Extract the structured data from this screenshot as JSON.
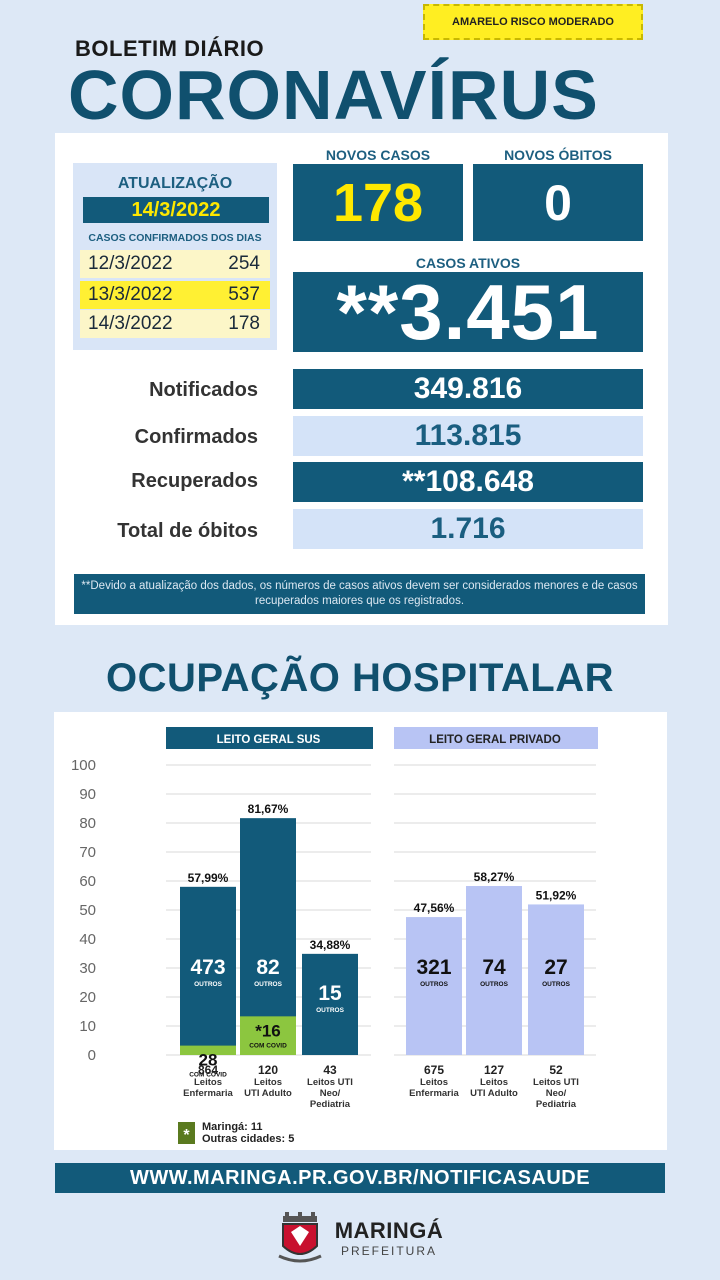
{
  "risk_badge": "AMARELO RISCO MODERADO",
  "header": {
    "subtitle": "BOLETIM DIÁRIO",
    "title": "CORONAVÍRUS"
  },
  "update": {
    "title": "ATUALIZAÇÃO",
    "date": "14/3/2022",
    "label": "CASOS CONFIRMADOS DOS DIAS",
    "days": [
      {
        "date": "12/3/2022",
        "value": "254"
      },
      {
        "date": "13/3/2022",
        "value": "537"
      },
      {
        "date": "14/3/2022",
        "value": "178"
      }
    ]
  },
  "new_cases": {
    "label": "NOVOS CASOS",
    "value": "178"
  },
  "new_deaths": {
    "label": "NOVOS ÓBITOS",
    "value": "0"
  },
  "active": {
    "label": "CASOS ATIVOS",
    "value": "**3.451"
  },
  "stats": [
    {
      "label": "Notificados",
      "value": "349.816"
    },
    {
      "label": "Confirmados",
      "value": "113.815"
    },
    {
      "label": "Recuperados",
      "value": "**108.648"
    },
    {
      "label": "Total de óbitos",
      "value": "1.716"
    }
  ],
  "note": "**Devido a atualização dos dados, os números de casos ativos devem ser considerados menores e de casos recuperados maiores que os registrados.",
  "occupancy_title": "OCUPAÇÃO HOSPITALAR",
  "chart_data": {
    "type": "bar",
    "ylim": [
      0,
      100
    ],
    "yticks": [
      "100",
      "90",
      "80",
      "70",
      "60",
      "50",
      "40",
      "30",
      "20",
      "10",
      "0"
    ],
    "groups": [
      {
        "name": "LEITO GERAL SUS",
        "bars": [
          {
            "pct": 57.99,
            "pct_label": "57,99%",
            "others": "473",
            "others_label": "OUTROS",
            "covid": "28",
            "covid_label": "COM COVID",
            "covid_pct": 3.24,
            "beds": "864",
            "category": "Leitos Enfermaria"
          },
          {
            "pct": 81.67,
            "pct_label": "81,67%",
            "others": "82",
            "others_label": "OUTROS",
            "covid": "*16",
            "covid_label": "COM COVID",
            "covid_pct": 13.33,
            "beds": "120",
            "category": "Leitos UTI Adulto"
          },
          {
            "pct": 34.88,
            "pct_label": "34,88%",
            "others": "15",
            "others_label": "OUTROS",
            "covid": "",
            "covid_label": "",
            "covid_pct": 0,
            "beds": "43",
            "category": "Leitos UTI Neo/ Pediatria"
          }
        ]
      },
      {
        "name": "LEITO GERAL PRIVADO",
        "bars": [
          {
            "pct": 47.56,
            "pct_label": "47,56%",
            "others": "321",
            "others_label": "OUTROS",
            "beds": "675",
            "category": "Leitos Enfermaria"
          },
          {
            "pct": 58.27,
            "pct_label": "58,27%",
            "others": "74",
            "others_label": "OUTROS",
            "beds": "127",
            "category": "Leitos UTI Adulto"
          },
          {
            "pct": 51.92,
            "pct_label": "51,92%",
            "others": "27",
            "others_label": "OUTROS",
            "beds": "52",
            "category": "Leitos UTI Neo/ Pediatria"
          }
        ]
      }
    ],
    "footnote": {
      "mark": "*",
      "line1": "Maringá: 11",
      "line2": "Outras cidades: 5"
    },
    "colors": {
      "sus": "#125a7a",
      "covid": "#8cc63f",
      "private": "#b8c4f4",
      "sus_header": "#125a7a",
      "private_header": "#b8c4f4"
    }
  },
  "website": "WWW.MARINGA.PR.GOV.BR/NOTIFICASAUDE",
  "logo": {
    "name": "MARINGÁ",
    "sub": "PREFEITURA"
  }
}
